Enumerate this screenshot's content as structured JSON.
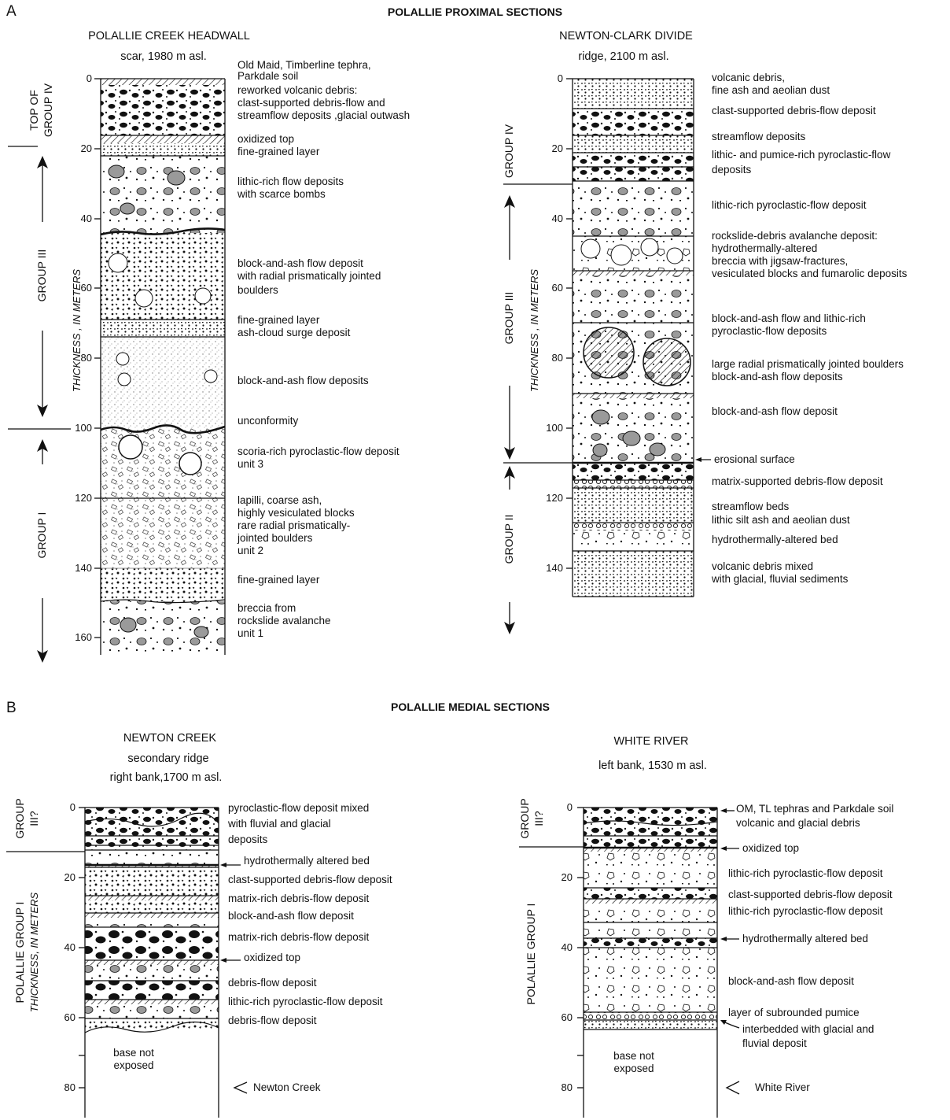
{
  "panel_a": {
    "letter": "A",
    "heading": "POLALLIE PROXIMAL SECTIONS",
    "headwall": {
      "title": "POLALLIE CREEK HEADWALL",
      "subtitle": "scar, 1980 m asl.",
      "axis_label": "THICKNESS , IN METERS",
      "ticks": [
        "0",
        "20",
        "40",
        "60",
        "80",
        "100",
        "120",
        "140",
        "160"
      ],
      "group_top_1": "TOP OF",
      "group_top_2": "GROUP IV",
      "group_3": "GROUP III",
      "group_1": "GROUP I",
      "labels": [
        "Old Maid, Timberline tephra,",
        "Parkdale soil",
        "reworked volcanic debris:",
        "clast-supported debris-flow and",
        "streamflow deposits ,glacial outwash",
        "oxidized top",
        "fine-grained layer",
        "lithic-rich flow deposits",
        "with scarce bombs",
        "block-and-ash flow deposit",
        "with radial prismatically jointed",
        "boulders",
        "fine-grained layer",
        "ash-cloud surge deposit",
        "block-and-ash flow deposits",
        "unconformity",
        "scoria-rich pyroclastic-flow deposit",
        "unit 3",
        "lapilli, coarse ash,",
        "highly vesiculated blocks",
        "rare radial prismatically-",
        "jointed boulders",
        "unit 2",
        "fine-grained layer",
        "breccia from",
        "rockslide avalanche",
        "unit 1"
      ]
    },
    "divide": {
      "title": "NEWTON-CLARK DIVIDE",
      "subtitle": "ridge, 2100 m asl.",
      "axis_label": "THICKNESS , IN METERS",
      "ticks": [
        "0",
        "20",
        "40",
        "60",
        "80",
        "100",
        "120",
        "140"
      ],
      "group_4": "GROUP IV",
      "group_3": "GROUP III",
      "group_2": "GROUP II",
      "labels": [
        "volcanic debris,",
        "fine ash and aeolian dust",
        "clast-supported debris-flow deposit",
        "streamflow deposits",
        "lithic- and pumice-rich pyroclastic-flow",
        "deposits",
        "lithic-rich pyroclastic-flow deposit",
        "rockslide-debris avalanche deposit:",
        "hydrothermally-altered",
        "breccia with jigsaw-fractures,",
        "vesiculated blocks and fumarolic deposits",
        "block-and-ash flow and lithic-rich",
        "pyroclastic-flow deposits",
        "large radial prismatically jointed boulders",
        "block-and-ash flow deposits",
        "block-and-ash flow deposit",
        "erosional surface",
        "matrix-supported debris-flow deposit",
        "streamflow beds",
        "lithic silt ash and aeolian dust",
        "hydrothermally-altered bed",
        "volcanic debris mixed",
        "with glacial, fluvial sediments"
      ]
    }
  },
  "panel_b": {
    "letter": "B",
    "heading": "POLALLIE MEDIAL SECTIONS",
    "newton": {
      "title": "NEWTON CREEK",
      "subtitle_1": "secondary ridge",
      "subtitle_2": "right bank,1700 m asl.",
      "axis_label": "THICKNESS, IN METERS",
      "ticks": [
        "0",
        "20",
        "40",
        "60",
        "80"
      ],
      "group_top_1": "GROUP",
      "group_top_2": "III?",
      "group_main": "POLALLIE GROUP I",
      "base_1": "base not",
      "base_2": "exposed",
      "river": "Newton Creek",
      "labels": [
        "pyroclastic-flow deposit mixed",
        "with fluvial and glacial",
        "deposits",
        "hydrothermally altered bed",
        "clast-supported debris-flow deposit",
        "matrix-rich debris-flow deposit",
        "block-and-ash flow deposit",
        "matrix-rich debris-flow deposit",
        "oxidized top",
        "debris-flow deposit",
        "lithic-rich pyroclastic-flow deposit",
        "debris-flow deposit"
      ]
    },
    "white": {
      "title": "WHITE RIVER",
      "subtitle": "left bank, 1530 m asl.",
      "ticks": [
        "0",
        "20",
        "40",
        "60",
        "80"
      ],
      "group_top_1": "GROUP",
      "group_top_2": "III?",
      "group_main": "POLALLIE GROUP I",
      "base_1": "base not",
      "base_2": "exposed",
      "river": "White River",
      "labels": [
        "OM, TL tephras and Parkdale soil",
        "volcanic and glacial debris",
        "oxidized top",
        "lithic-rich pyroclastic-flow deposit",
        "clast-supported debris-flow deposit",
        "lithic-rich pyroclastic-flow deposit",
        "hydrothermally altered bed",
        "block-and-ash flow deposit",
        "layer of subrounded pumice",
        "interbedded with glacial and",
        "fluvial deposit"
      ]
    }
  }
}
